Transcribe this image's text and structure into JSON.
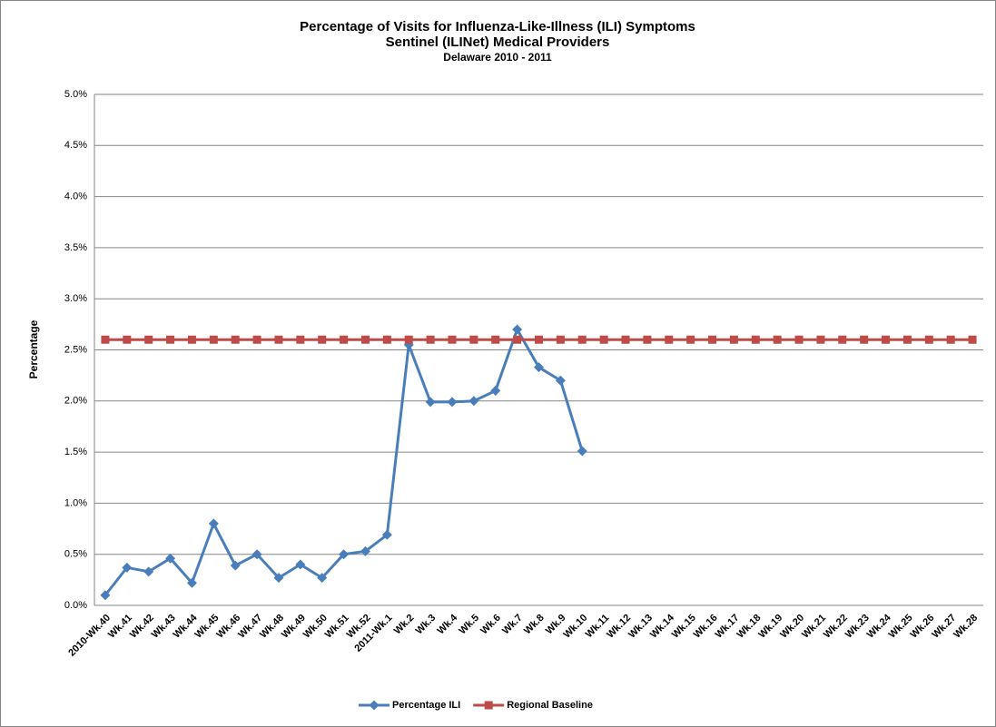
{
  "chart_data": {
    "type": "line",
    "title": "Percentage of Visits for Influenza-Like-Illness (ILI) Symptoms",
    "subtitle": [
      "Sentinel (ILINet) Medical Providers",
      "Delaware 2010 - 2011"
    ],
    "y_label": "Percentage",
    "categories": [
      "2010-Wk.40",
      "Wk.41",
      "Wk.42",
      "Wk.43",
      "Wk.44",
      "Wk.45",
      "Wk.46",
      "Wk.47",
      "Wk.48",
      "Wk.49",
      "Wk.50",
      "Wk.51",
      "Wk.52",
      "2011-Wk.1",
      "Wk.2",
      "Wk.3",
      "Wk.4",
      "Wk.5",
      "Wk.6",
      "Wk.7",
      "Wk.8",
      "Wk.9",
      "Wk.10",
      "Wk.11",
      "Wk.12",
      "Wk.13",
      "Wk.14",
      "Wk.15",
      "Wk.16",
      "Wk.17",
      "Wk.18",
      "Wk.19",
      "Wk.20",
      "Wk.21",
      "Wk.22",
      "Wk.23",
      "Wk.24",
      "Wk.25",
      "Wk.26",
      "Wk.27",
      "Wk.28"
    ],
    "series": [
      {
        "name": "Percentage ILI",
        "color": "#4a7ebb",
        "marker": "diamond",
        "values": [
          0.1,
          0.37,
          0.33,
          0.46,
          0.22,
          0.8,
          0.39,
          0.5,
          0.27,
          0.4,
          0.27,
          0.5,
          0.53,
          0.69,
          2.55,
          1.99,
          1.99,
          2.0,
          2.1,
          2.7,
          2.33,
          2.2,
          1.51,
          null,
          null,
          null,
          null,
          null,
          null,
          null,
          null,
          null,
          null,
          null,
          null,
          null,
          null,
          null,
          null,
          null,
          null
        ]
      },
      {
        "name": "Regional Baseline",
        "color": "#be4b48",
        "marker": "square",
        "values": [
          2.6,
          2.6,
          2.6,
          2.6,
          2.6,
          2.6,
          2.6,
          2.6,
          2.6,
          2.6,
          2.6,
          2.6,
          2.6,
          2.6,
          2.6,
          2.6,
          2.6,
          2.6,
          2.6,
          2.6,
          2.6,
          2.6,
          2.6,
          2.6,
          2.6,
          2.6,
          2.6,
          2.6,
          2.6,
          2.6,
          2.6,
          2.6,
          2.6,
          2.6,
          2.6,
          2.6,
          2.6,
          2.6,
          2.6,
          2.6,
          2.6
        ]
      }
    ],
    "ylim": [
      0,
      5
    ],
    "yticks": [
      {
        "value": 0,
        "label": "0.0%"
      },
      {
        "value": 0.5,
        "label": "0.5%"
      },
      {
        "value": 1,
        "label": "1.0%"
      },
      {
        "value": 1.5,
        "label": "1.5%"
      },
      {
        "value": 2,
        "label": "2.0%"
      },
      {
        "value": 2.5,
        "label": "2.5%"
      },
      {
        "value": 3,
        "label": "3.0%"
      },
      {
        "value": 3.5,
        "label": "3.5%"
      },
      {
        "value": 4,
        "label": "4.0%"
      },
      {
        "value": 4.5,
        "label": "4.5%"
      },
      {
        "value": 5,
        "label": "5.0%"
      }
    ],
    "grid": true,
    "legend": "bottom"
  }
}
